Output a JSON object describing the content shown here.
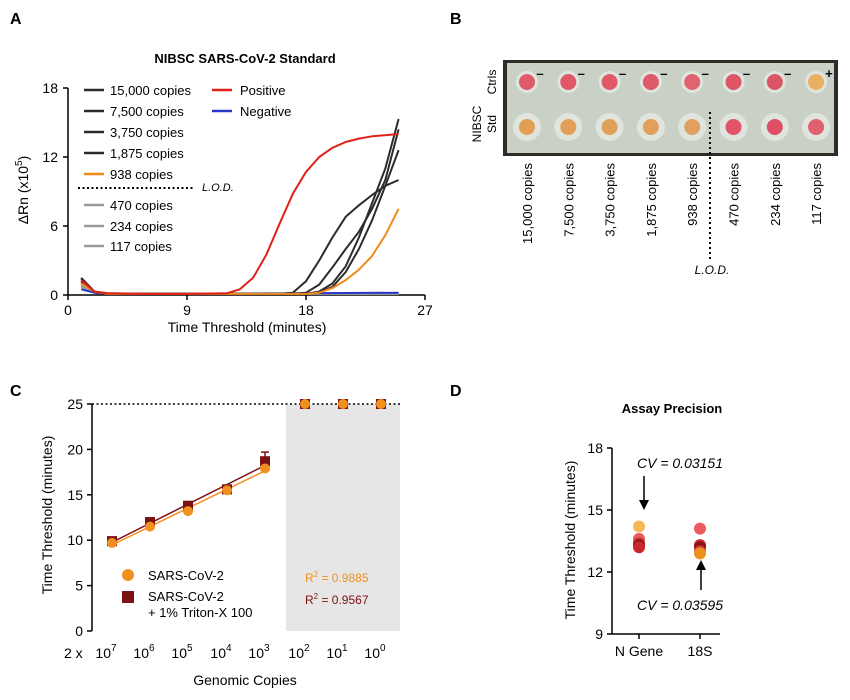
{
  "panels": {
    "A": "A",
    "B": "B",
    "C": "C",
    "D": "D"
  },
  "chart_data": [
    {
      "panel": "A",
      "type": "line",
      "title": "NIBSC SARS-CoV-2 Standard",
      "xlabel": "Time Threshold (minutes)",
      "ylabel": "ΔRn (x10⁵)",
      "ylabel_main": "ΔRn (x10",
      "ylabel_sup": "5",
      "ylabel_end": ")",
      "xlim": [
        0,
        27
      ],
      "ylim": [
        0,
        18
      ],
      "xticks": [
        "0",
        "9",
        "18",
        "27"
      ],
      "yticks": [
        "0",
        "6",
        "12",
        "18"
      ],
      "lod_label": "L.O.D.",
      "legend": [
        {
          "label": "15,000 copies",
          "color": "#2b2b2b"
        },
        {
          "label": "7,500 copies",
          "color": "#2b2b2b"
        },
        {
          "label": "3,750 copies",
          "color": "#2b2b2b"
        },
        {
          "label": "1,875 copies",
          "color": "#2b2b2b"
        },
        {
          "label": "938 copies",
          "color": "#f08a1c"
        },
        {
          "label": "470 copies",
          "color": "#9a9a9a"
        },
        {
          "label": "234 copies",
          "color": "#9a9a9a"
        },
        {
          "label": "117 copies",
          "color": "#9a9a9a"
        }
      ],
      "legend_right": [
        {
          "label": "Positive",
          "color": "#e0211a"
        },
        {
          "label": "Negative",
          "color": "#2a36c8"
        }
      ],
      "series": [
        {
          "name": "Positive",
          "color": "#e0211a",
          "x": [
            1,
            2,
            3,
            6,
            9,
            12,
            13,
            14,
            15,
            16,
            17,
            18,
            19,
            20,
            21,
            22,
            23,
            24,
            25
          ],
          "y": [
            1.3,
            0.3,
            0.15,
            0.1,
            0.1,
            0.15,
            0.5,
            1.5,
            3.5,
            6.2,
            8.8,
            10.7,
            12,
            12.8,
            13.3,
            13.6,
            13.8,
            13.9,
            14
          ]
        },
        {
          "name": "Negative",
          "color": "#2a36c8",
          "x": [
            1,
            2,
            3,
            9,
            18,
            25
          ],
          "y": [
            0.5,
            0.2,
            0.1,
            0.1,
            0.15,
            0.2
          ]
        },
        {
          "name": "15,000 copies",
          "color": "#2b2b2b",
          "x": [
            1,
            2,
            3,
            9,
            16,
            17,
            18,
            19,
            20,
            21,
            22,
            23,
            24,
            25
          ],
          "y": [
            1.5,
            0.3,
            0.15,
            0.1,
            0.1,
            0.2,
            1.2,
            3,
            5,
            6.8,
            7.8,
            8.7,
            9.5,
            10
          ]
        },
        {
          "name": "7,500 copies",
          "color": "#2b2b2b",
          "x": [
            1,
            2,
            3,
            9,
            17,
            18,
            19,
            20,
            21,
            22,
            23,
            24,
            25
          ],
          "y": [
            1.4,
            0.3,
            0.1,
            0.1,
            0.1,
            0.2,
            0.9,
            2.4,
            4,
            5.5,
            7.5,
            10,
            14.4
          ]
        },
        {
          "name": "3,750 copies",
          "color": "#2b2b2b",
          "x": [
            1,
            2,
            3,
            9,
            18,
            19,
            20,
            21,
            22,
            23,
            24,
            25
          ],
          "y": [
            1.2,
            0.3,
            0.1,
            0.1,
            0.1,
            0.3,
            1,
            2.5,
            5,
            8,
            11,
            15.3
          ]
        },
        {
          "name": "1,875 copies",
          "color": "#2b2b2b",
          "x": [
            1,
            2,
            3,
            9,
            18,
            19,
            20,
            21,
            22,
            23,
            24,
            25
          ],
          "y": [
            1.1,
            0.3,
            0.1,
            0.1,
            0.1,
            0.2,
            0.7,
            2,
            4,
            6.5,
            9.5,
            12.6
          ]
        },
        {
          "name": "938 copies",
          "color": "#f08a1c",
          "x": [
            1,
            2,
            3,
            9,
            18,
            19,
            20,
            21,
            22,
            23,
            24,
            25
          ],
          "y": [
            1,
            0.3,
            0.1,
            0.1,
            0.1,
            0.2,
            0.6,
            1.3,
            2.2,
            3.4,
            5.2,
            7.5
          ]
        },
        {
          "name": "470 copies",
          "color": "#9a9a9a",
          "x": [
            1,
            2,
            3,
            9,
            18,
            25
          ],
          "y": [
            0.9,
            0.25,
            0.1,
            0.1,
            0.1,
            0.1
          ]
        },
        {
          "name": "234 copies",
          "color": "#9a9a9a",
          "x": [
            1,
            2,
            3,
            9,
            18,
            25
          ],
          "y": [
            0.8,
            0.25,
            0.1,
            0.1,
            0.1,
            0.1
          ]
        },
        {
          "name": "117 copies",
          "color": "#9a9a9a",
          "x": [
            1,
            2,
            3,
            9,
            18,
            25
          ],
          "y": [
            0.7,
            0.2,
            0.1,
            0.1,
            0.1,
            0.1
          ]
        }
      ]
    },
    {
      "panel": "B",
      "type": "table",
      "row_labels": [
        "Ctrls",
        "NIBSC Std"
      ],
      "row_label_top": "Ctrls",
      "row_label_bottom_1": "NIBSC",
      "row_label_bottom_2": "Std",
      "columns": [
        "15,000 copies",
        "7,500 copies",
        "3,750 copies",
        "1,875 copies",
        "938 copies",
        "470 copies",
        "234 copies",
        "117 copies"
      ],
      "ctrl_marks": [
        "–",
        "–",
        "–",
        "–",
        "–",
        "–",
        "–",
        "+"
      ],
      "ctrl_colors": [
        "#e05b68",
        "#e05868",
        "#e25a69",
        "#de5c6a",
        "#e0646f",
        "#de5666",
        "#dc5567",
        "#e8b060"
      ],
      "std_colors": [
        "#e09f55",
        "#e29f58",
        "#e0a058",
        "#e2a05c",
        "#e0a060",
        "#e2546a",
        "#de4f66",
        "#e06070"
      ],
      "lod_label": "L.O.D."
    },
    {
      "panel": "C",
      "type": "scatter",
      "xlabel": "Genomic Copies",
      "ylabel": "Time Threshold (minutes)",
      "ylim": [
        0,
        25
      ],
      "yticks": [
        "0",
        "5",
        "10",
        "15",
        "20",
        "25"
      ],
      "x_prefix": "2 x",
      "xtick_base": "10",
      "xtick_exponents": [
        "7",
        "6",
        "5",
        "4",
        "3",
        "2",
        "1",
        "0"
      ],
      "categories": [
        "2x10^7",
        "2x10^6",
        "2x10^5",
        "2x10^4",
        "2x10^3",
        "2x10^2",
        "2x10^1",
        "2x10^0"
      ],
      "series": [
        {
          "name": "SARS-CoV-2",
          "color": "#f0901e",
          "values": [
            9.7,
            11.5,
            13.2,
            15.5,
            17.9,
            25,
            25,
            25
          ],
          "r2_label": "R",
          "r2_sup": "2",
          "r2_value": " = 0.9885"
        },
        {
          "name": "SARS-CoV-2 + 1% Triton-X 100",
          "name_1": "SARS-CoV-2",
          "name_2": "+ 1% Triton-X 100",
          "color": "#7b1113",
          "values": [
            9.9,
            12.0,
            13.8,
            15.6,
            18.7,
            25,
            25,
            25
          ],
          "error": [
            0.2,
            0.2,
            0.2,
            0.2,
            1.0,
            0,
            0,
            0
          ],
          "r2_label": "R",
          "r2_sup": "2",
          "r2_value": " = 0.9567"
        }
      ],
      "shaded_from_category": 5,
      "dotted_line_y": 25
    },
    {
      "panel": "D",
      "type": "scatter",
      "title": "Assay Precision",
      "ylabel": "Time Threshold (minutes)",
      "ylim": [
        9,
        18
      ],
      "yticks": [
        "9",
        "12",
        "15",
        "18"
      ],
      "categories": [
        "N Gene",
        "18S"
      ],
      "points": [
        {
          "category": "N Gene",
          "values": [
            14.2,
            13.6,
            13.4,
            13.3,
            13.2
          ],
          "colors": [
            "#f7b955",
            "#e45d62",
            "#d03a3a",
            "#8b1415",
            "#c8282c"
          ]
        },
        {
          "category": "18S",
          "values": [
            14.1,
            13.3,
            13.2,
            13.0,
            12.9
          ],
          "colors": [
            "#ec5b60",
            "#c82a2e",
            "#8b1415",
            "#d0393a",
            "#f0901e"
          ]
        }
      ],
      "annotations": [
        "CV = 0.03151",
        "CV = 0.03595"
      ]
    }
  ]
}
